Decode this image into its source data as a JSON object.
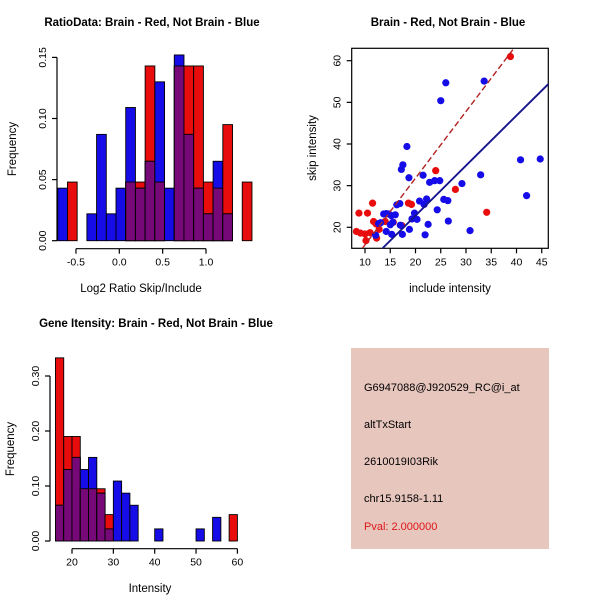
{
  "colors": {
    "brain_red": "#E80C0C",
    "notbrain_blue": "#150CE8",
    "overlap_purple": "#770877",
    "regression_red": "#B22222",
    "regression_blue": "#14148C",
    "axis_black": "#000000",
    "info_bg": "#E7C6BE",
    "pval_red": "#DE1414",
    "background": "#FFFFFF"
  },
  "chart_data": [
    {
      "id": "ratio_hist",
      "type": "histogram",
      "title": "RatioData: Brain - Red, Not Brain - Blue",
      "xlabel": "Log2 Ratio Skip/Include",
      "ylabel": "Frequency",
      "legend_note": "Brain histogram red, Not Brain histogram blue, overlap purple",
      "x_ticks": [
        {
          "v": -0.5,
          "label": "-0.5"
        },
        {
          "v": 0.0,
          "label": "0.0"
        },
        {
          "v": 0.5,
          "label": "0.5"
        },
        {
          "v": 1.0,
          "label": "1.0"
        }
      ],
      "y_ticks": [
        {
          "v": 0.0,
          "label": "0.00"
        },
        {
          "v": 0.05,
          "label": "0.05"
        },
        {
          "v": 0.1,
          "label": "0.10"
        },
        {
          "v": 0.15,
          "label": "0.15"
        }
      ],
      "xlim": [
        -0.75,
        1.55
      ],
      "ylim": [
        0,
        0.155
      ],
      "bin_edges": [
        -0.71,
        -0.598,
        -0.486,
        -0.374,
        -0.262,
        -0.15,
        -0.038,
        0.074,
        0.186,
        0.298,
        0.41,
        0.522,
        0.634,
        0.746,
        0.858,
        0.97,
        1.082,
        1.194,
        1.306,
        1.418,
        1.53
      ],
      "series": [
        {
          "name": "Brain",
          "color_key": "brain_red",
          "freq": [
            0,
            0.048,
            0,
            0,
            0,
            0,
            0,
            0.048,
            0.048,
            0.143,
            0.048,
            0,
            0.143,
            0.143,
            0.143,
            0.048,
            0.043,
            0.095,
            0,
            0.048
          ]
        },
        {
          "name": "Not Brain",
          "color_key": "notbrain_blue",
          "freq": [
            0.043,
            0,
            0,
            0.022,
            0.087,
            0.022,
            0.043,
            0.109,
            0.043,
            0.065,
            0.13,
            0.043,
            0.152,
            0.087,
            0.043,
            0.022,
            0.065,
            0.022,
            0,
            0
          ]
        }
      ]
    },
    {
      "id": "scatter",
      "type": "scatter",
      "title": "Brain - Red, Not Brain - Blue",
      "xlabel": "include intensity",
      "ylabel": "skip intensity",
      "x_ticks": [
        {
          "v": 10,
          "label": "10"
        },
        {
          "v": 15,
          "label": "15"
        },
        {
          "v": 20,
          "label": "20"
        },
        {
          "v": 25,
          "label": "25"
        },
        {
          "v": 30,
          "label": "30"
        },
        {
          "v": 35,
          "label": "35"
        },
        {
          "v": 40,
          "label": "40"
        },
        {
          "v": 45,
          "label": "45"
        }
      ],
      "y_ticks": [
        {
          "v": 20,
          "label": "20"
        },
        {
          "v": 30,
          "label": "30"
        },
        {
          "v": 40,
          "label": "40"
        },
        {
          "v": 50,
          "label": "50"
        },
        {
          "v": 60,
          "label": "60"
        }
      ],
      "xlim": [
        7.4,
        46.4
      ],
      "ylim": [
        15,
        63
      ],
      "series": [
        {
          "name": "Brain",
          "color_key": "brain_red",
          "points": [
            [
              38.8,
              61.0
            ],
            [
              24.0,
              33.6
            ],
            [
              27.9,
              29.1
            ],
            [
              34.1,
              23.6
            ],
            [
              11.5,
              25.8
            ],
            [
              8.8,
              23.4
            ],
            [
              10.5,
              23.4
            ],
            [
              11.7,
              21.4
            ],
            [
              12.2,
              20.8
            ],
            [
              12.8,
              19.5
            ],
            [
              8.3,
              19.0
            ],
            [
              9.1,
              18.6
            ],
            [
              10.0,
              18.4
            ],
            [
              11.0,
              18.7
            ],
            [
              10.2,
              16.8
            ],
            [
              12.3,
              17.4
            ],
            [
              14.0,
              21.4
            ],
            [
              15.6,
              21.2
            ],
            [
              17.3,
              20.4
            ],
            [
              18.6,
              25.8
            ],
            [
              19.2,
              25.5
            ]
          ]
        },
        {
          "name": "Not Brain",
          "color_key": "notbrain_blue",
          "points": [
            [
              26.0,
              54.7
            ],
            [
              33.6,
              55.1
            ],
            [
              25.0,
              50.4
            ],
            [
              18.3,
              39.4
            ],
            [
              17.5,
              35.0
            ],
            [
              17.2,
              33.9
            ],
            [
              18.7,
              31.9
            ],
            [
              21.5,
              32.5
            ],
            [
              22.8,
              30.8
            ],
            [
              23.8,
              31.2
            ],
            [
              24.8,
              31.2
            ],
            [
              29.2,
              30.5
            ],
            [
              32.9,
              32.6
            ],
            [
              40.8,
              36.2
            ],
            [
              44.7,
              36.4
            ],
            [
              42.0,
              27.6
            ],
            [
              30.8,
              19.2
            ],
            [
              26.4,
              26.4
            ],
            [
              25.6,
              26.7
            ],
            [
              22.2,
              26.8
            ],
            [
              21.7,
              25.5
            ],
            [
              19.8,
              23.4
            ],
            [
              20.3,
              21.9
            ],
            [
              22.5,
              20.7
            ],
            [
              24.3,
              24.2
            ],
            [
              26.5,
              21.5
            ],
            [
              18.8,
              19.5
            ],
            [
              17.4,
              18.3
            ],
            [
              21.9,
              18.2
            ],
            [
              15.2,
              22.8
            ],
            [
              14.7,
              23.2
            ],
            [
              14.2,
              23.3
            ],
            [
              13.7,
              23.2
            ],
            [
              15.5,
              21.2
            ],
            [
              15.0,
              20.6
            ],
            [
              14.2,
              19.0
            ],
            [
              15.3,
              18.3
            ],
            [
              13.1,
              21.1
            ],
            [
              12.7,
              20.9
            ],
            [
              16.3,
              25.4
            ],
            [
              16.9,
              25.7
            ],
            [
              17.0,
              20.5
            ],
            [
              12.1,
              18.1
            ],
            [
              16.0,
              23.0
            ],
            [
              19.3,
              22.0
            ],
            [
              20.8,
              26.3
            ]
          ]
        }
      ],
      "lines": [
        {
          "name": "brain-fit-line",
          "color_key": "regression_red",
          "dashed": true,
          "x1": 9.5,
          "y1": 15,
          "x2": 39.5,
          "y2": 63
        },
        {
          "name": "notbrain-fit-line",
          "color_key": "regression_blue",
          "dashed": false,
          "x1": 13.5,
          "y1": 15,
          "x2": 46.3,
          "y2": 54.4
        }
      ]
    },
    {
      "id": "gene_hist",
      "type": "histogram",
      "title": "Gene Itensity: Brain - Red, Not Brain - Blue",
      "xlabel": "Intensity",
      "ylabel": "Frequency",
      "legend_note": "Brain histogram red, Not Brain histogram blue, overlap purple",
      "x_ticks": [
        {
          "v": 20,
          "label": "20"
        },
        {
          "v": 30,
          "label": "30"
        },
        {
          "v": 40,
          "label": "40"
        },
        {
          "v": 50,
          "label": "50"
        },
        {
          "v": 60,
          "label": "60"
        }
      ],
      "y_ticks": [
        {
          "v": 0.0,
          "label": "0.00"
        },
        {
          "v": 0.1,
          "label": "0.10"
        },
        {
          "v": 0.2,
          "label": "0.20"
        },
        {
          "v": 0.3,
          "label": "0.30"
        }
      ],
      "xlim": [
        15,
        62
      ],
      "ylim": [
        0,
        0.34
      ],
      "bin_edges": [
        16,
        18,
        20,
        22,
        24,
        26,
        28,
        30,
        32,
        34,
        36,
        38,
        40,
        42,
        44,
        46,
        48,
        50,
        52,
        54,
        56,
        58,
        60
      ],
      "series": [
        {
          "name": "Brain",
          "color_key": "brain_red",
          "freq": [
            0.333,
            0.19,
            0.19,
            0.095,
            0.095,
            0.095,
            0.048,
            0,
            0,
            0,
            0,
            0,
            0,
            0,
            0,
            0,
            0,
            0,
            0,
            0,
            0,
            0.048
          ]
        },
        {
          "name": "Not Brain",
          "color_key": "notbrain_blue",
          "freq": [
            0.065,
            0.13,
            0.152,
            0.13,
            0.152,
            0.087,
            0.022,
            0.109,
            0.087,
            0.065,
            0,
            0,
            0.022,
            0,
            0,
            0,
            0,
            0.022,
            0,
            0.043,
            0,
            0
          ]
        }
      ]
    }
  ],
  "info_box": {
    "lines": [
      {
        "text": "G6947088@J920529_RC@i_at"
      },
      {
        "text": "altTxStart"
      },
      {
        "text": "2610019I03Rik"
      },
      {
        "text": "chr15.9158-1.11"
      },
      {
        "text": "Pval: 2.000000"
      }
    ]
  }
}
